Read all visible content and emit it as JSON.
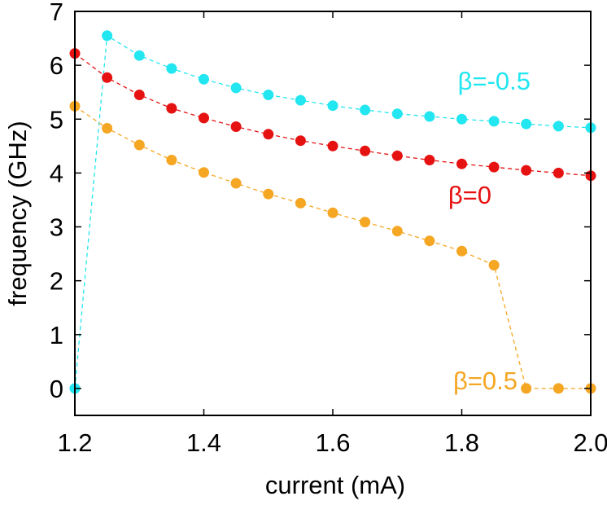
{
  "chart_data": {
    "type": "line",
    "title": "",
    "xlabel": "current (mA)",
    "ylabel": "frequency (GHz)",
    "xlim": [
      1.2,
      2.0
    ],
    "ylim": [
      -0.5,
      7
    ],
    "grid": false,
    "legend": "none",
    "x_ticks": [
      "1.2",
      "1.4",
      "1.6",
      "1.8",
      "2.0"
    ],
    "y_ticks": [
      "0",
      "1",
      "2",
      "3",
      "4",
      "5",
      "6",
      "7"
    ],
    "x": [
      1.2,
      1.25,
      1.3,
      1.35,
      1.4,
      1.45,
      1.5,
      1.55,
      1.6,
      1.65,
      1.7,
      1.75,
      1.8,
      1.85,
      1.9,
      1.95,
      2.0
    ],
    "series": [
      {
        "name": "β=-0.5",
        "color": "#22e6f0",
        "values": [
          0.0,
          6.55,
          6.18,
          5.94,
          5.74,
          5.58,
          5.45,
          5.35,
          5.25,
          5.17,
          5.1,
          5.05,
          5.0,
          4.96,
          4.91,
          4.87,
          4.84
        ]
      },
      {
        "name": "β=0",
        "color": "#e61212",
        "values": [
          6.22,
          5.77,
          5.45,
          5.2,
          5.02,
          4.86,
          4.72,
          4.6,
          4.5,
          4.41,
          4.32,
          4.24,
          4.17,
          4.11,
          4.05,
          4.0,
          3.95
        ]
      },
      {
        "name": "β=0.5",
        "color": "#f5a623",
        "values": [
          5.24,
          4.83,
          4.52,
          4.24,
          4.01,
          3.81,
          3.61,
          3.44,
          3.26,
          3.09,
          2.92,
          2.74,
          2.55,
          2.29,
          0.0,
          0.0,
          0.0
        ]
      }
    ]
  }
}
